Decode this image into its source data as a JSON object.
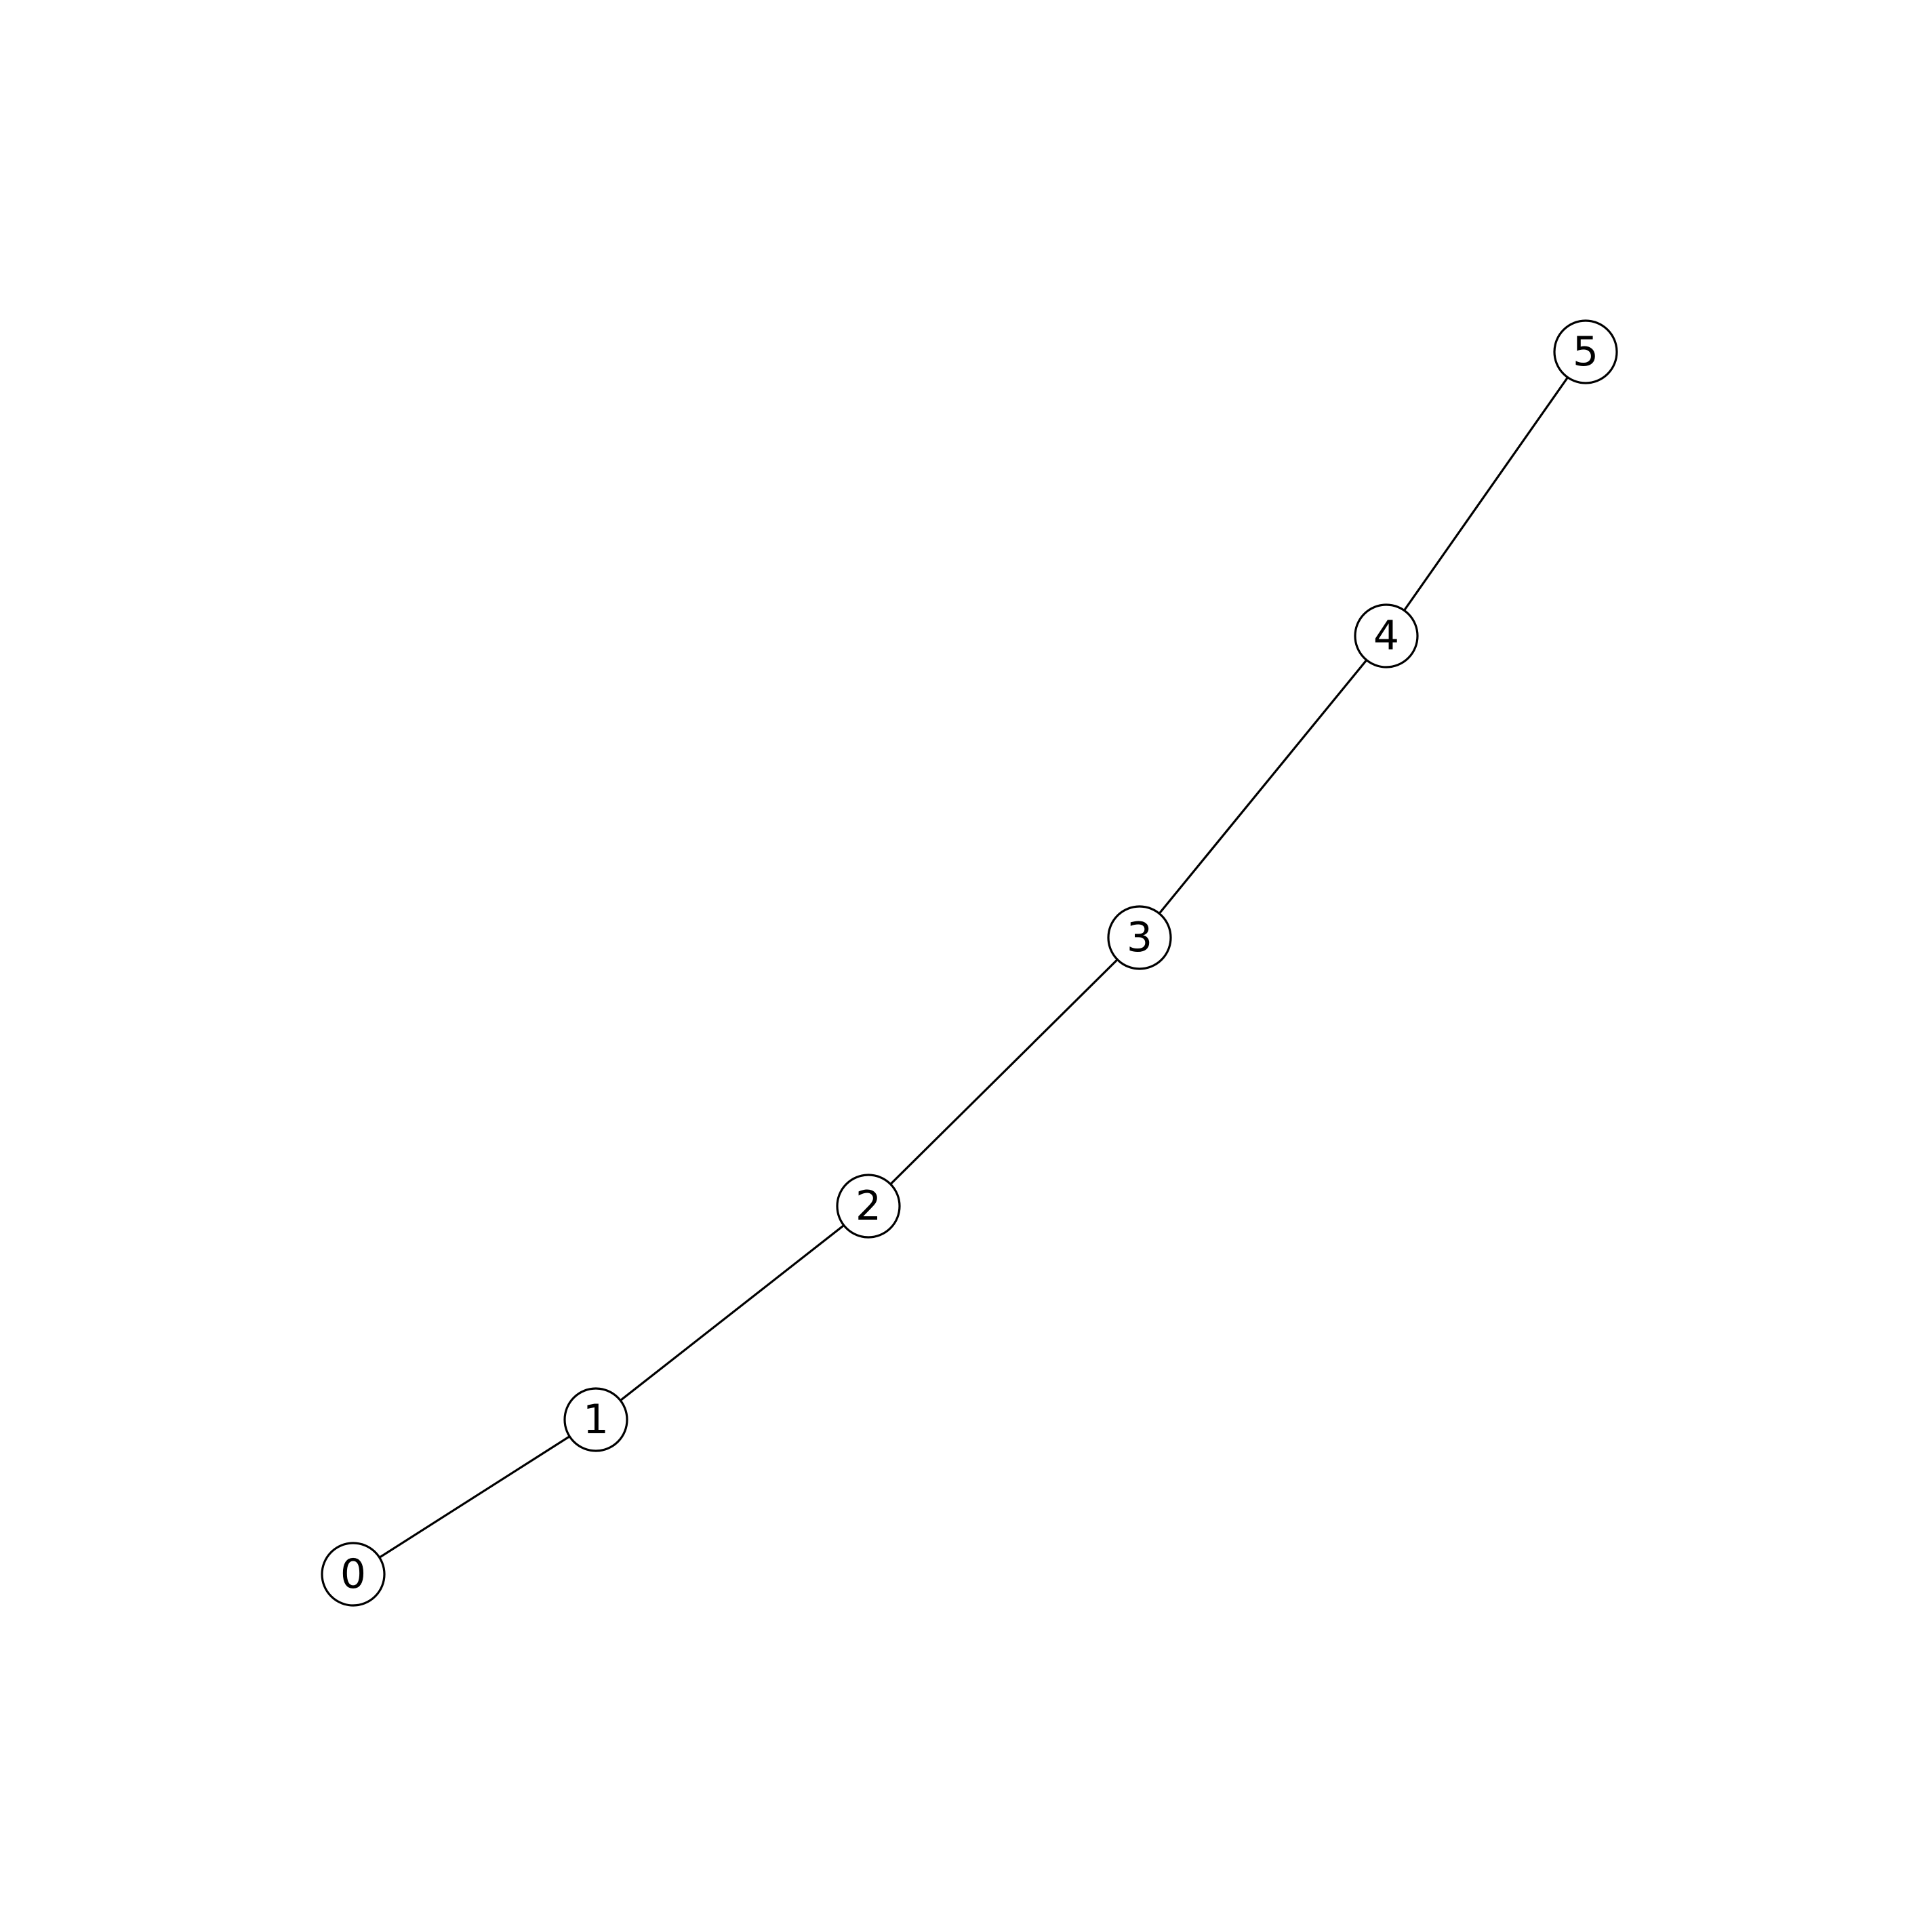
{
  "graph": {
    "nodes": [
      {
        "id": "n0",
        "label": "0"
      },
      {
        "id": "n1",
        "label": "1"
      },
      {
        "id": "n2",
        "label": "2"
      },
      {
        "id": "n3",
        "label": "3"
      },
      {
        "id": "n4",
        "label": "4"
      },
      {
        "id": "n5",
        "label": "5"
      }
    ],
    "edges": [
      {
        "source": "n0",
        "target": "n1"
      },
      {
        "source": "n1",
        "target": "n2"
      },
      {
        "source": "n2",
        "target": "n3"
      },
      {
        "source": "n3",
        "target": "n4"
      },
      {
        "source": "n4",
        "target": "n5"
      }
    ]
  }
}
